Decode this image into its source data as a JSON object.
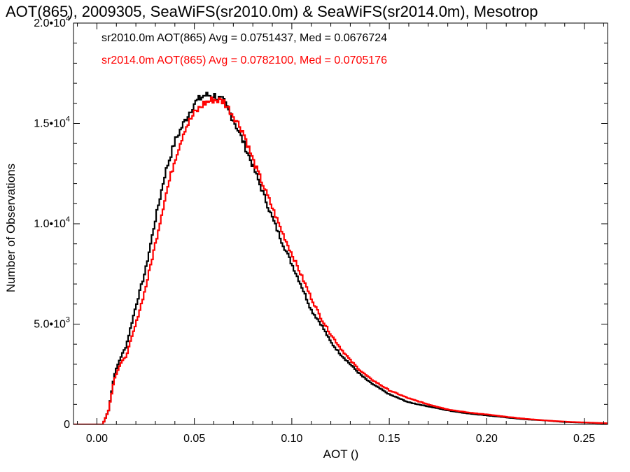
{
  "chart_data": {
    "type": "line",
    "title": "AOT(865), 2009305, SeaWiFS(sr2010.0m) & SeaWiFS(sr2014.0m), Mesotrop",
    "xlabel": "AOT ()",
    "ylabel": "Number of Observations",
    "xlim": [
      -0.012,
      0.262
    ],
    "ylim": [
      0,
      20000
    ],
    "x_ticks": [
      0.0,
      0.05,
      0.1,
      0.15,
      0.2,
      0.25
    ],
    "x_tick_labels": [
      "0.00",
      "0.05",
      "0.10",
      "0.15",
      "0.20",
      "0.25"
    ],
    "y_ticks": [
      0,
      5000,
      10000,
      15000,
      20000
    ],
    "y_tick_labels": [
      {
        "mantissa": "0",
        "exp": ""
      },
      {
        "mantissa": "5.0•10",
        "exp": "3"
      },
      {
        "mantissa": "1.0•10",
        "exp": "4"
      },
      {
        "mantissa": "1.5•10",
        "exp": "4"
      },
      {
        "mantissa": "2.0•10",
        "exp": "4"
      }
    ],
    "grid": false,
    "legend": "top-left",
    "series": [
      {
        "name": "sr2010.0m",
        "color": "#000000",
        "annotation": "sr2010.0m AOT(865) Avg = 0.0751437, Med = 0.0676724",
        "points": [
          [
            -0.012,
            0
          ],
          [
            0.003,
            0
          ],
          [
            0.006,
            700
          ],
          [
            0.009,
            2500
          ],
          [
            0.012,
            3300
          ],
          [
            0.015,
            3900
          ],
          [
            0.02,
            5900
          ],
          [
            0.025,
            7700
          ],
          [
            0.03,
            10200
          ],
          [
            0.035,
            12500
          ],
          [
            0.04,
            14100
          ],
          [
            0.045,
            15100
          ],
          [
            0.05,
            16000
          ],
          [
            0.055,
            16400
          ],
          [
            0.06,
            16400
          ],
          [
            0.065,
            16100
          ],
          [
            0.07,
            15200
          ],
          [
            0.075,
            14100
          ],
          [
            0.08,
            12900
          ],
          [
            0.085,
            11600
          ],
          [
            0.09,
            10300
          ],
          [
            0.095,
            9100
          ],
          [
            0.1,
            8000
          ],
          [
            0.105,
            6900
          ],
          [
            0.11,
            5700
          ],
          [
            0.115,
            5000
          ],
          [
            0.12,
            4100
          ],
          [
            0.125,
            3500
          ],
          [
            0.13,
            3000
          ],
          [
            0.135,
            2500
          ],
          [
            0.14,
            2100
          ],
          [
            0.145,
            1800
          ],
          [
            0.15,
            1500
          ],
          [
            0.16,
            1100
          ],
          [
            0.17,
            900
          ],
          [
            0.18,
            700
          ],
          [
            0.19,
            550
          ],
          [
            0.2,
            450
          ],
          [
            0.21,
            350
          ],
          [
            0.22,
            250
          ],
          [
            0.23,
            200
          ],
          [
            0.24,
            120
          ],
          [
            0.25,
            90
          ],
          [
            0.262,
            50
          ]
        ]
      },
      {
        "name": "sr2014.0m",
        "color": "#ff0000",
        "annotation": "sr2014.0m AOT(865) Avg = 0.0782100, Med = 0.0705176",
        "points": [
          [
            -0.012,
            0
          ],
          [
            0.003,
            0
          ],
          [
            0.006,
            700
          ],
          [
            0.009,
            2300
          ],
          [
            0.012,
            3000
          ],
          [
            0.015,
            3400
          ],
          [
            0.02,
            5000
          ],
          [
            0.025,
            6800
          ],
          [
            0.03,
            9000
          ],
          [
            0.035,
            11300
          ],
          [
            0.04,
            13200
          ],
          [
            0.045,
            14700
          ],
          [
            0.05,
            15500
          ],
          [
            0.055,
            16000
          ],
          [
            0.06,
            16200
          ],
          [
            0.065,
            16100
          ],
          [
            0.07,
            15400
          ],
          [
            0.075,
            14600
          ],
          [
            0.08,
            13200
          ],
          [
            0.085,
            12000
          ],
          [
            0.09,
            10800
          ],
          [
            0.095,
            9600
          ],
          [
            0.1,
            8500
          ],
          [
            0.105,
            7400
          ],
          [
            0.11,
            6300
          ],
          [
            0.115,
            5300
          ],
          [
            0.12,
            4500
          ],
          [
            0.125,
            3800
          ],
          [
            0.13,
            3200
          ],
          [
            0.135,
            2700
          ],
          [
            0.14,
            2300
          ],
          [
            0.145,
            2000
          ],
          [
            0.15,
            1700
          ],
          [
            0.16,
            1300
          ],
          [
            0.17,
            1000
          ],
          [
            0.18,
            750
          ],
          [
            0.19,
            600
          ],
          [
            0.2,
            500
          ],
          [
            0.21,
            380
          ],
          [
            0.22,
            280
          ],
          [
            0.23,
            200
          ],
          [
            0.24,
            140
          ],
          [
            0.25,
            100
          ],
          [
            0.262,
            60
          ]
        ]
      }
    ]
  }
}
